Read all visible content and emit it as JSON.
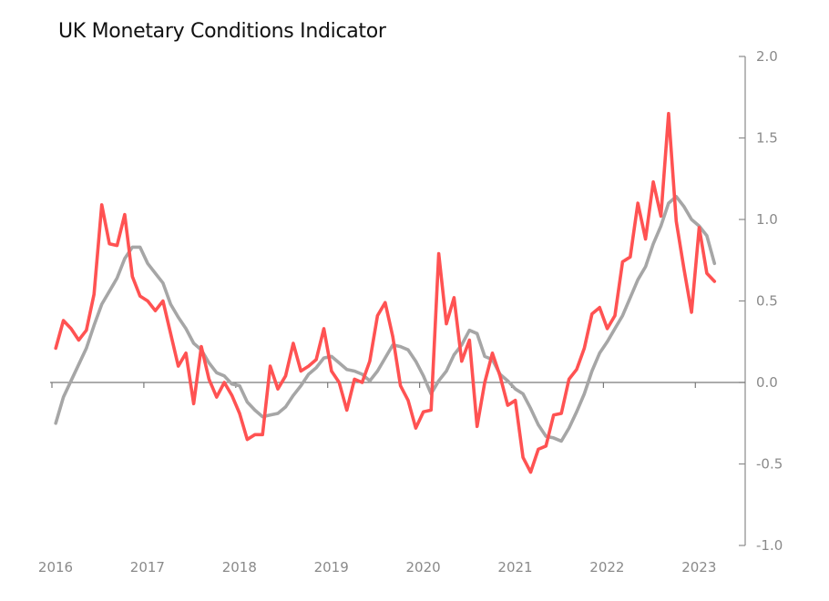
{
  "chart_data": {
    "type": "line",
    "title": "UK Monetary Conditions Indicator",
    "xlabel": "",
    "ylabel": "",
    "x_ticks": [
      "2016",
      "2017",
      "2018",
      "2019",
      "2020",
      "2021",
      "2022",
      "2023"
    ],
    "y_ticks": [
      "2.0",
      "1.5",
      "1.0",
      "0.5",
      "0.0",
      "-0.5",
      "-1.0"
    ],
    "ylim": [
      -1.0,
      2.0
    ],
    "y_axis_side": "right",
    "grid": false,
    "legend": "none",
    "series": [
      {
        "color": "#ff5252",
        "values": [
          0.21,
          0.38,
          0.33,
          0.26,
          0.32,
          0.54,
          1.09,
          0.85,
          0.84,
          1.03,
          0.65,
          0.53,
          0.5,
          0.44,
          0.5,
          0.3,
          0.1,
          0.18,
          -0.13,
          0.22,
          0.02,
          -0.09,
          0.0,
          -0.08,
          -0.19,
          -0.35,
          -0.32,
          -0.32,
          0.1,
          -0.04,
          0.04,
          0.24,
          0.07,
          0.1,
          0.14,
          0.33,
          0.07,
          0.0,
          -0.17,
          0.02,
          0.0,
          0.13,
          0.41,
          0.49,
          0.28,
          -0.02,
          -0.11,
          -0.28,
          -0.18,
          -0.17,
          0.79,
          0.36,
          0.52,
          0.13,
          0.26,
          -0.27,
          0.0,
          0.18,
          0.04,
          -0.14,
          -0.11,
          -0.46,
          -0.55,
          -0.41,
          -0.39,
          -0.2,
          -0.19,
          0.02,
          0.08,
          0.21,
          0.42,
          0.46,
          0.33,
          0.41,
          0.74,
          0.77,
          1.1,
          0.88,
          1.23,
          1.02,
          1.65,
          0.99,
          0.7,
          0.43,
          0.95,
          0.67,
          0.62
        ]
      },
      {
        "color": "#a6a6a6",
        "values": [
          -0.25,
          -0.09,
          0.01,
          0.11,
          0.21,
          0.35,
          0.48,
          0.56,
          0.64,
          0.76,
          0.83,
          0.83,
          0.73,
          0.67,
          0.61,
          0.48,
          0.4,
          0.33,
          0.24,
          0.2,
          0.12,
          0.06,
          0.04,
          -0.01,
          -0.02,
          -0.12,
          -0.17,
          -0.21,
          -0.2,
          -0.19,
          -0.15,
          -0.08,
          -0.02,
          0.05,
          0.09,
          0.15,
          0.16,
          0.12,
          0.08,
          0.07,
          0.05,
          0.01,
          0.07,
          0.15,
          0.23,
          0.22,
          0.2,
          0.13,
          0.04,
          -0.07,
          0.01,
          0.07,
          0.17,
          0.23,
          0.32,
          0.3,
          0.16,
          0.14,
          0.05,
          0.01,
          -0.04,
          -0.07,
          -0.16,
          -0.26,
          -0.33,
          -0.34,
          -0.36,
          -0.28,
          -0.18,
          -0.07,
          0.07,
          0.18,
          0.25,
          0.33,
          0.41,
          0.52,
          0.63,
          0.71,
          0.85,
          0.96,
          1.1,
          1.14,
          1.08,
          1.0,
          0.96,
          0.9,
          0.73
        ]
      }
    ]
  }
}
